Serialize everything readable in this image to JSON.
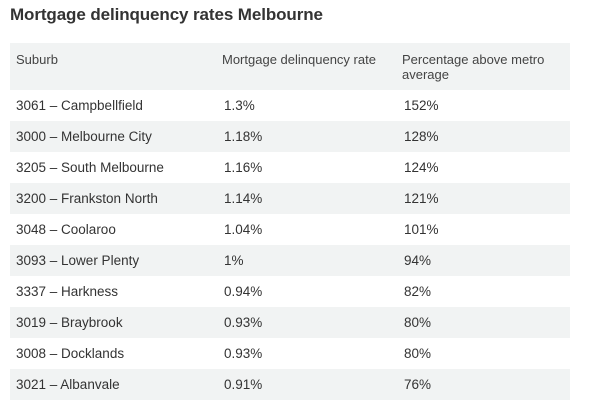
{
  "title": "Mortgage delinquency rates Melbourne",
  "table": {
    "headers": [
      "Suburb",
      "Mortgage delinquency rate",
      "Percentage above metro average"
    ],
    "rows": [
      [
        "3061 – Campbellfield",
        "1.3%",
        "152%"
      ],
      [
        "3000 – Melbourne City",
        "1.18%",
        "128%"
      ],
      [
        "3205 – South Melbourne",
        "1.16%",
        "124%"
      ],
      [
        "3200 – Frankston North",
        "1.14%",
        "121%"
      ],
      [
        "3048 – Coolaroo",
        "1.04%",
        "101%"
      ],
      [
        "3093 – Lower Plenty",
        "1%",
        "94%"
      ],
      [
        "3337 – Harkness",
        "0.94%",
        "82%"
      ],
      [
        "3019 – Braybrook",
        "0.93%",
        "80%"
      ],
      [
        "3008 – Docklands",
        "0.93%",
        "80%"
      ],
      [
        "3021 – Albanvale",
        "0.91%",
        "76%"
      ]
    ]
  }
}
